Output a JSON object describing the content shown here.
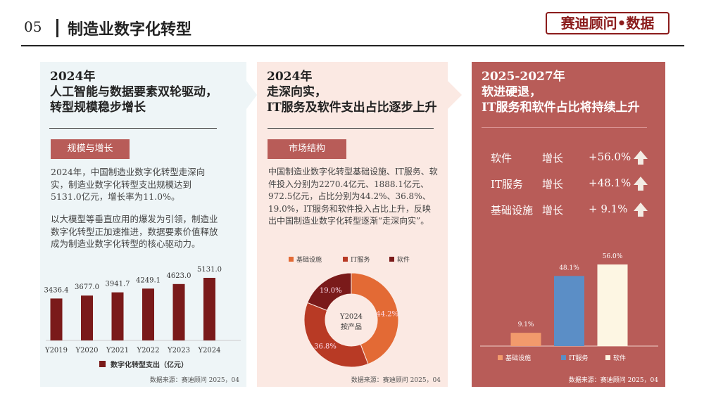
{
  "header": {
    "number": "05",
    "title": "制造业数字化转型",
    "logo": "赛迪顾问•数据"
  },
  "panel1": {
    "title": [
      "2024年",
      "人工智能与数据要素双轮驱动，",
      "转型规模稳步增长"
    ],
    "tag": "规模与增长",
    "para1": "2024年，中国制造业数字化转型走深向实，制造业数字化转型支出规模达到5131.0亿元，增长率为11.0%。",
    "para2": "以大模型等垂直应用的爆发为引领，制造业数字化转型正加速推进，数据要素价值释放成为制造业数字化转型的核心驱动力。",
    "source": "数据来源：赛迪顾问  2025，04"
  },
  "panel2": {
    "title": [
      "2024年",
      "走深向实，",
      "IT服务及软件支出占比逐步上升"
    ],
    "tag": "市场结构",
    "para": "中国制造业数字化转型基础设施、IT服务、软件投入分别为2270.4亿元、1888.1亿元、972.5亿元，占比分别为44.2%、36.8%、19.0%，IT服务和软件投入占比上升，反映出中国制造业数字化转型逐渐“走深向实”。",
    "source": "数据来源：赛迪顾问  2025，04"
  },
  "panel3": {
    "title": [
      "2025-2027年",
      "软进硬退，",
      "IT服务和软件占比将持续上升"
    ],
    "rows": [
      {
        "label": "软件",
        "metric": "增长",
        "value": "+56.0%",
        "icon": "arrow-up-icon"
      },
      {
        "label": "IT服务",
        "metric": "增长",
        "value": "+48.1%",
        "icon": "arrow-up-icon"
      },
      {
        "label": "基础设施",
        "metric": "增长",
        "value": "+ 9.1%",
        "icon": "arrow-up-icon"
      }
    ],
    "source": "数据来源：赛迪顾问  2025，04"
  },
  "chart_data": [
    {
      "type": "bar",
      "categories": [
        "Y2019",
        "Y2020",
        "Y2021",
        "Y2022",
        "Y2023",
        "Y2024"
      ],
      "series": [
        {
          "name": "数字化转型支出（亿元）",
          "values": [
            3436.4,
            3677.0,
            3941.7,
            4249.1,
            4623.0,
            5131.0
          ]
        }
      ],
      "labels": [
        "3436.4",
        "3677.0",
        "3941.7",
        "4249.1",
        "4623.0",
        "5131.0"
      ],
      "ylim": [
        0,
        5131
      ],
      "legend": "bottom",
      "color": "#7a1a1a"
    },
    {
      "type": "pie",
      "donut": true,
      "center_text": [
        "Y2024",
        "按产品"
      ],
      "categories": [
        "基础设施",
        "IT服务",
        "软件"
      ],
      "values": [
        44.2,
        36.8,
        19.0
      ],
      "labels": [
        "44.2%",
        "36.8%",
        "19.0%"
      ],
      "colors": [
        "#e36a35",
        "#b83a25",
        "#7a1a1a"
      ],
      "legend": "top"
    },
    {
      "type": "bar",
      "categories": [
        "基础设施",
        "IT服务",
        "软件"
      ],
      "values": [
        9.1,
        48.1,
        56.0
      ],
      "labels": [
        "9.1%",
        "48.1%",
        "56.0%"
      ],
      "colors": [
        "#f29a6c",
        "#5b8ec6",
        "#fdf6e3"
      ],
      "ylim": [
        0,
        56
      ],
      "legend": "bottom"
    }
  ]
}
